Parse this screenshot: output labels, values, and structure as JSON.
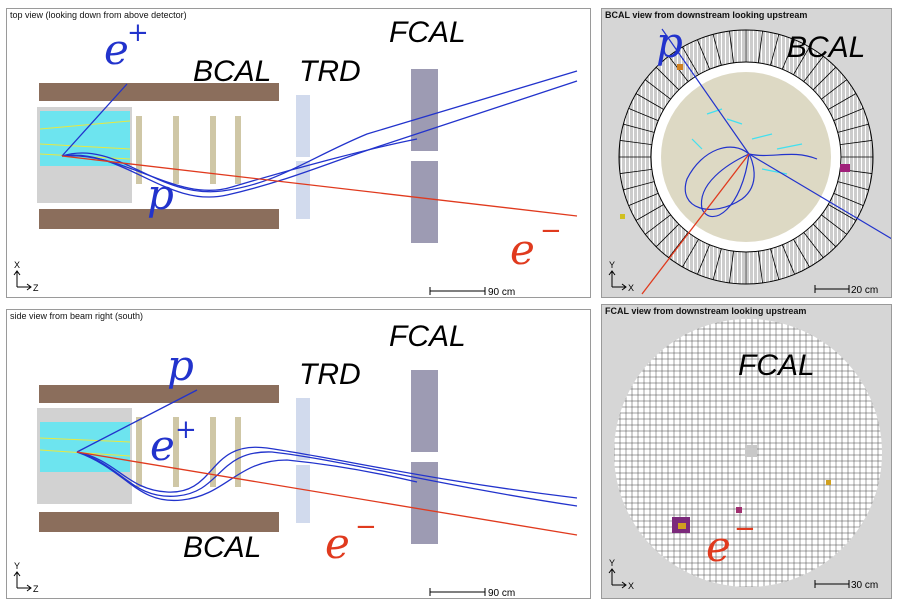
{
  "panels": {
    "top_view": {
      "title": "top view (looking down from above detector)",
      "labels": {
        "bcal": "BCAL",
        "trd": "TRD",
        "fcal": "FCAL"
      },
      "particles": {
        "e_plus": "e",
        "e_plus_sign": "+",
        "proton": "p",
        "e_minus": "e",
        "e_minus_sign": "−"
      },
      "axis": {
        "vertical": "X",
        "horizontal": "Z"
      },
      "scale": "90 cm"
    },
    "side_view": {
      "title": "side view from beam right (south)",
      "labels": {
        "bcal": "BCAL",
        "trd": "TRD",
        "fcal": "FCAL"
      },
      "particles": {
        "proton": "p",
        "e_plus": "e",
        "e_plus_sign": "+",
        "e_minus": "e",
        "e_minus_sign": "−"
      },
      "axis": {
        "vertical": "Y",
        "horizontal": "Z"
      },
      "scale": "90 cm"
    },
    "bcal_view": {
      "title": "BCAL view from downstream looking upstream",
      "labels": {
        "bcal": "BCAL"
      },
      "particles": {
        "proton": "p"
      },
      "axis": {
        "vertical": "Y",
        "horizontal": "X"
      },
      "scale": "20 cm"
    },
    "fcal_view": {
      "title": "FCAL view from downstream looking upstream",
      "labels": {
        "fcal": "FCAL"
      },
      "particles": {
        "e_minus": "e",
        "e_minus_sign": "−"
      },
      "axis": {
        "vertical": "Y",
        "horizontal": "X"
      },
      "scale": "30 cm"
    }
  },
  "colors": {
    "positive_track": "#2233cc",
    "negative_track": "#e03a1e",
    "bcal_module": "#8b6e5c",
    "trd_module": "#c9d4ea",
    "fcal_module": "#9d9bb3",
    "hit_cyan": "#40e0f0"
  }
}
